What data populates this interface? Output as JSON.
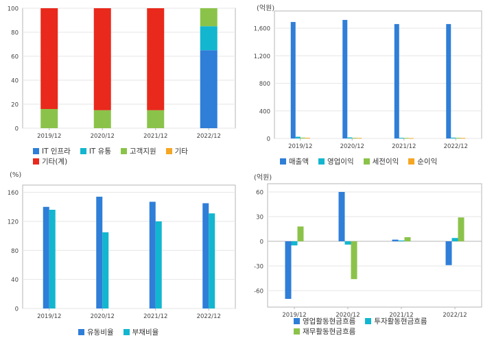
{
  "chart_data": [
    {
      "id": "revenue-composition",
      "type": "bar",
      "stacked": true,
      "unit": "",
      "categories": [
        "2019/12",
        "2020/12",
        "2021/12",
        "2022/12"
      ],
      "ylim": [
        0,
        100
      ],
      "yticks": [
        0,
        20,
        40,
        60,
        80,
        100
      ],
      "series": [
        {
          "name": "IT 인프라",
          "color": "#2f7ed8",
          "values": [
            0,
            0,
            0,
            65
          ]
        },
        {
          "name": "IT 유통",
          "color": "#13b6cf",
          "values": [
            0,
            0,
            0,
            20
          ]
        },
        {
          "name": "고객지원",
          "color": "#8bc34a",
          "values": [
            16,
            15,
            15,
            15
          ]
        },
        {
          "name": "기타",
          "color": "#f5a623",
          "values": [
            0,
            0,
            0,
            0
          ]
        },
        {
          "name": "기타(계)",
          "color": "#e8291c",
          "values": [
            84,
            85,
            85,
            0
          ]
        }
      ],
      "legend_rows": [
        [
          "IT 인프라",
          "IT 유통",
          "고객지원",
          "기타"
        ],
        [
          "기타(계)"
        ]
      ]
    },
    {
      "id": "income",
      "type": "bar",
      "unit": "(억원)",
      "categories": [
        "2019/12",
        "2020/12",
        "2021/12",
        "2022/12"
      ],
      "ylim": [
        0,
        1850
      ],
      "yticks": [
        0,
        400,
        800,
        1200,
        1600
      ],
      "yticklabels": [
        "0",
        "400",
        "800",
        "1,200",
        "1,600"
      ],
      "series": [
        {
          "name": "매출액",
          "color": "#2f7ed8",
          "values": [
            1690,
            1720,
            1660,
            1660
          ]
        },
        {
          "name": "영업이익",
          "color": "#13b6cf",
          "values": [
            25,
            15,
            10,
            12
          ]
        },
        {
          "name": "세전이익",
          "color": "#8bc34a",
          "values": [
            12,
            10,
            8,
            10
          ]
        },
        {
          "name": "순이익",
          "color": "#f5a623",
          "values": [
            10,
            8,
            6,
            8
          ]
        }
      ],
      "legend_rows": [
        [
          "매출액",
          "영업이익",
          "세전이익",
          "순이익"
        ]
      ]
    },
    {
      "id": "ratios",
      "type": "bar",
      "unit": "(%)",
      "categories": [
        "2019/12",
        "2020/12",
        "2021/12",
        "2022/12"
      ],
      "ylim": [
        0,
        170
      ],
      "yticks": [
        0,
        40,
        80,
        120,
        160
      ],
      "series": [
        {
          "name": "유동비율",
          "color": "#2f7ed8",
          "values": [
            140,
            154,
            147,
            145
          ]
        },
        {
          "name": "부채비율",
          "color": "#13b6cf",
          "values": [
            136,
            105,
            120,
            131
          ]
        }
      ],
      "legend_rows": [
        [
          "유동비율",
          "부채비율"
        ]
      ]
    },
    {
      "id": "cashflow",
      "type": "bar",
      "unit": "(억원)",
      "categories": [
        "2019/12",
        "2020/12",
        "2021/12",
        "2022/12"
      ],
      "ylim": [
        -80,
        70
      ],
      "yticks": [
        -60,
        -30,
        0,
        30,
        60
      ],
      "series": [
        {
          "name": "영업활동현금흐름",
          "color": "#2f7ed8",
          "values": [
            -70,
            60,
            2,
            -29
          ]
        },
        {
          "name": "투자활동현금흐름",
          "color": "#13b6cf",
          "values": [
            -5,
            -4,
            1,
            4
          ]
        },
        {
          "name": "재무활동현금흐름",
          "color": "#8bc34a",
          "values": [
            18,
            -46,
            5,
            29
          ]
        }
      ],
      "legend_rows": [
        [
          "영업활동현금흐름",
          "투자활동현금흐름"
        ],
        [
          "재무활동현금흐름"
        ]
      ]
    }
  ]
}
